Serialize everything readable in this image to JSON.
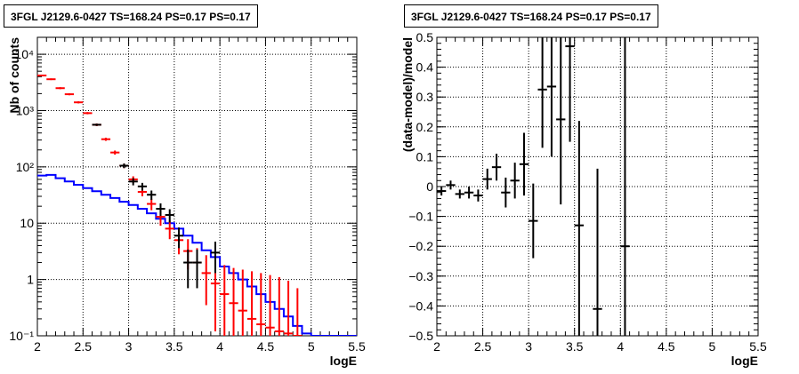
{
  "chart_data": [
    {
      "type": "scatter",
      "title": "3FGL J2129.6-0427 TS=168.24 PS=0.17 PS=0.17",
      "xlabel": "logE",
      "ylabel": "Nb of counts",
      "xlim": [
        2,
        5.5
      ],
      "ylim": [
        0.1,
        20000
      ],
      "yscale": "log",
      "grid": true,
      "x_ticks": [
        "2",
        "2.5",
        "3",
        "3.5",
        "4",
        "4.5",
        "5",
        "5.5"
      ],
      "y_ticks": [
        {
          "value": 0.1,
          "label": "10⁻¹"
        },
        {
          "value": 1,
          "label": "1"
        },
        {
          "value": 10,
          "label": "10"
        },
        {
          "value": 100,
          "label": "10²"
        },
        {
          "value": 1000,
          "label": "10³"
        },
        {
          "value": 10000,
          "label": "10⁴"
        }
      ],
      "series": [
        {
          "color": "#0000ff",
          "style": "step",
          "values": [
            {
              "x0": 2.0,
              "x1": 2.1,
              "y": 70
            },
            {
              "x0": 2.1,
              "x1": 2.2,
              "y": 72
            },
            {
              "x0": 2.2,
              "x1": 2.3,
              "y": 63
            },
            {
              "x0": 2.3,
              "x1": 2.4,
              "y": 55
            },
            {
              "x0": 2.4,
              "x1": 2.5,
              "y": 48
            },
            {
              "x0": 2.5,
              "x1": 2.6,
              "y": 42
            },
            {
              "x0": 2.6,
              "x1": 2.7,
              "y": 37
            },
            {
              "x0": 2.7,
              "x1": 2.8,
              "y": 32
            },
            {
              "x0": 2.8,
              "x1": 2.9,
              "y": 28
            },
            {
              "x0": 2.9,
              "x1": 3.0,
              "y": 24
            },
            {
              "x0": 3.0,
              "x1": 3.1,
              "y": 21
            },
            {
              "x0": 3.1,
              "x1": 3.2,
              "y": 18
            },
            {
              "x0": 3.2,
              "x1": 3.3,
              "y": 15
            },
            {
              "x0": 3.3,
              "x1": 3.4,
              "y": 12
            },
            {
              "x0": 3.4,
              "x1": 3.5,
              "y": 10
            },
            {
              "x0": 3.5,
              "x1": 3.6,
              "y": 8
            },
            {
              "x0": 3.6,
              "x1": 3.7,
              "y": 6
            },
            {
              "x0": 3.7,
              "x1": 3.8,
              "y": 4.5
            },
            {
              "x0": 3.8,
              "x1": 3.9,
              "y": 3.3
            },
            {
              "x0": 3.9,
              "x1": 4.0,
              "y": 2.5
            },
            {
              "x0": 4.0,
              "x1": 4.1,
              "y": 1.7
            },
            {
              "x0": 4.1,
              "x1": 4.2,
              "y": 1.3
            },
            {
              "x0": 4.2,
              "x1": 4.3,
              "y": 1.0
            },
            {
              "x0": 4.3,
              "x1": 4.4,
              "y": 0.75
            },
            {
              "x0": 4.4,
              "x1": 4.5,
              "y": 0.55
            },
            {
              "x0": 4.5,
              "x1": 4.6,
              "y": 0.4
            },
            {
              "x0": 4.6,
              "x1": 4.7,
              "y": 0.3
            },
            {
              "x0": 4.7,
              "x1": 4.8,
              "y": 0.22
            },
            {
              "x0": 4.8,
              "x1": 4.9,
              "y": 0.15
            },
            {
              "x0": 4.9,
              "x1": 5.0,
              "y": 0.11
            },
            {
              "x0": 5.0,
              "x1": 5.5,
              "y": 0.1
            }
          ]
        },
        {
          "color": "#ff0000",
          "style": "error-points",
          "values": [
            {
              "x": 2.05,
              "y": 4200,
              "lo": 4050,
              "hi": 4350
            },
            {
              "x": 2.15,
              "y": 3600,
              "lo": 3480,
              "hi": 3720
            },
            {
              "x": 2.25,
              "y": 2500,
              "lo": 2400,
              "hi": 2600
            },
            {
              "x": 2.35,
              "y": 1950,
              "lo": 1870,
              "hi": 2030
            },
            {
              "x": 2.45,
              "y": 1400,
              "lo": 1340,
              "hi": 1460
            },
            {
              "x": 2.55,
              "y": 900,
              "lo": 860,
              "hi": 940
            },
            {
              "x": 2.65,
              "y": 560,
              "lo": 530,
              "hi": 590
            },
            {
              "x": 2.75,
              "y": 310,
              "lo": 290,
              "hi": 330
            },
            {
              "x": 2.85,
              "y": 180,
              "lo": 165,
              "hi": 195
            },
            {
              "x": 2.95,
              "y": 105,
              "lo": 95,
              "hi": 115
            },
            {
              "x": 3.05,
              "y": 60,
              "lo": 52,
              "hi": 68
            },
            {
              "x": 3.15,
              "y": 36,
              "lo": 30,
              "hi": 42
            },
            {
              "x": 3.25,
              "y": 22,
              "lo": 17,
              "hi": 27
            },
            {
              "x": 3.35,
              "y": 13,
              "lo": 9,
              "hi": 17
            },
            {
              "x": 3.45,
              "y": 8,
              "lo": 5.2,
              "hi": 11
            },
            {
              "x": 3.55,
              "y": 5,
              "lo": 2.8,
              "hi": 7.3
            },
            {
              "x": 3.65,
              "y": 3.2,
              "lo": 1.5,
              "hi": 5.2
            },
            {
              "x": 3.75,
              "y": 2.0,
              "lo": 0.8,
              "hi": 3.6
            },
            {
              "x": 3.85,
              "y": 1.3,
              "lo": 0.35,
              "hi": 2.7
            },
            {
              "x": 3.95,
              "y": 0.85,
              "lo": 0.12,
              "hi": 2.1
            },
            {
              "x": 4.05,
              "y": 0.55,
              "lo": 0.1,
              "hi": 1.8
            },
            {
              "x": 4.15,
              "y": 0.38,
              "lo": 0.1,
              "hi": 1.6
            },
            {
              "x": 4.25,
              "y": 0.28,
              "lo": 0.1,
              "hi": 1.5
            },
            {
              "x": 4.35,
              "y": 0.2,
              "lo": 0.1,
              "hi": 1.4
            },
            {
              "x": 4.45,
              "y": 0.16,
              "lo": 0.1,
              "hi": 1.3
            },
            {
              "x": 4.55,
              "y": 0.14,
              "lo": 0.1,
              "hi": 1.2
            },
            {
              "x": 4.65,
              "y": 0.12,
              "lo": 0.1,
              "hi": 1.1
            },
            {
              "x": 4.75,
              "y": 0.11,
              "lo": 0.1,
              "hi": 0.95
            },
            {
              "x": 4.85,
              "y": 0.1,
              "lo": 0.1,
              "hi": 0.7
            }
          ]
        },
        {
          "color": "#000000",
          "style": "error-points",
          "values": [
            {
              "x": 2.65,
              "y": 560,
              "lo": 535,
              "hi": 585
            },
            {
              "x": 2.95,
              "y": 105,
              "lo": 95,
              "hi": 115
            },
            {
              "x": 3.05,
              "y": 55,
              "lo": 47,
              "hi": 63
            },
            {
              "x": 3.15,
              "y": 45,
              "lo": 38,
              "hi": 52
            },
            {
              "x": 3.25,
              "y": 32,
              "lo": 26,
              "hi": 38
            },
            {
              "x": 3.35,
              "y": 18,
              "lo": 13.5,
              "hi": 22.5
            },
            {
              "x": 3.45,
              "y": 14,
              "lo": 10.3,
              "hi": 17.7
            },
            {
              "x": 3.55,
              "y": 6,
              "lo": 3.6,
              "hi": 8.4
            },
            {
              "x": 3.65,
              "y": 2,
              "lo": 0.7,
              "hi": 3.4
            },
            {
              "x": 3.75,
              "y": 2,
              "lo": 0.7,
              "hi": 3.4
            },
            {
              "x": 3.95,
              "y": 3,
              "lo": 1.3,
              "hi": 4.7
            }
          ]
        }
      ]
    },
    {
      "type": "scatter",
      "title": "3FGL J2129.6-0427 TS=168.24 PS=0.17 PS=0.17",
      "xlabel": "logE",
      "ylabel": "(data-model)/model",
      "xlim": [
        2,
        5.5
      ],
      "ylim": [
        -0.5,
        0.5
      ],
      "grid": true,
      "x_ticks": [
        "2",
        "2.5",
        "3",
        "3.5",
        "4",
        "4.5",
        "5",
        "5.5"
      ],
      "y_ticks": [
        "−0.5",
        "−0.4",
        "−0.3",
        "−0.2",
        "−0.1",
        "0",
        "0.1",
        "0.2",
        "0.3",
        "0.4",
        "0.5"
      ],
      "series": [
        {
          "color": "#000000",
          "style": "error-points",
          "values": [
            {
              "x": 2.05,
              "y": -0.015,
              "lo": -0.03,
              "hi": 0.0
            },
            {
              "x": 2.15,
              "y": 0.005,
              "lo": -0.01,
              "hi": 0.02
            },
            {
              "x": 2.25,
              "y": -0.025,
              "lo": -0.04,
              "hi": -0.01
            },
            {
              "x": 2.35,
              "y": -0.02,
              "lo": -0.04,
              "hi": 0.0
            },
            {
              "x": 2.45,
              "y": -0.03,
              "lo": -0.05,
              "hi": -0.01
            },
            {
              "x": 2.55,
              "y": 0.025,
              "lo": -0.01,
              "hi": 0.06
            },
            {
              "x": 2.65,
              "y": 0.065,
              "lo": 0.02,
              "hi": 0.11
            },
            {
              "x": 2.75,
              "y": -0.02,
              "lo": -0.07,
              "hi": 0.03
            },
            {
              "x": 2.85,
              "y": 0.02,
              "lo": -0.04,
              "hi": 0.08
            },
            {
              "x": 2.95,
              "y": 0.075,
              "lo": -0.03,
              "hi": 0.18
            },
            {
              "x": 3.05,
              "y": -0.115,
              "lo": -0.24,
              "hi": 0.01
            },
            {
              "x": 3.15,
              "y": 0.325,
              "lo": 0.13,
              "hi": 0.5
            },
            {
              "x": 3.25,
              "y": 0.335,
              "lo": 0.1,
              "hi": 0.5
            },
            {
              "x": 3.35,
              "y": 0.225,
              "lo": -0.06,
              "hi": 0.5
            },
            {
              "x": 3.45,
              "y": 0.47,
              "lo": 0.15,
              "hi": 0.5
            },
            {
              "x": 3.55,
              "y": -0.13,
              "lo": -0.5,
              "hi": 0.22
            },
            {
              "x": 3.75,
              "y": -0.41,
              "lo": -0.5,
              "hi": 0.06
            },
            {
              "x": 4.05,
              "y": -0.2,
              "lo": -0.5,
              "hi": 0.5
            }
          ]
        }
      ]
    }
  ]
}
